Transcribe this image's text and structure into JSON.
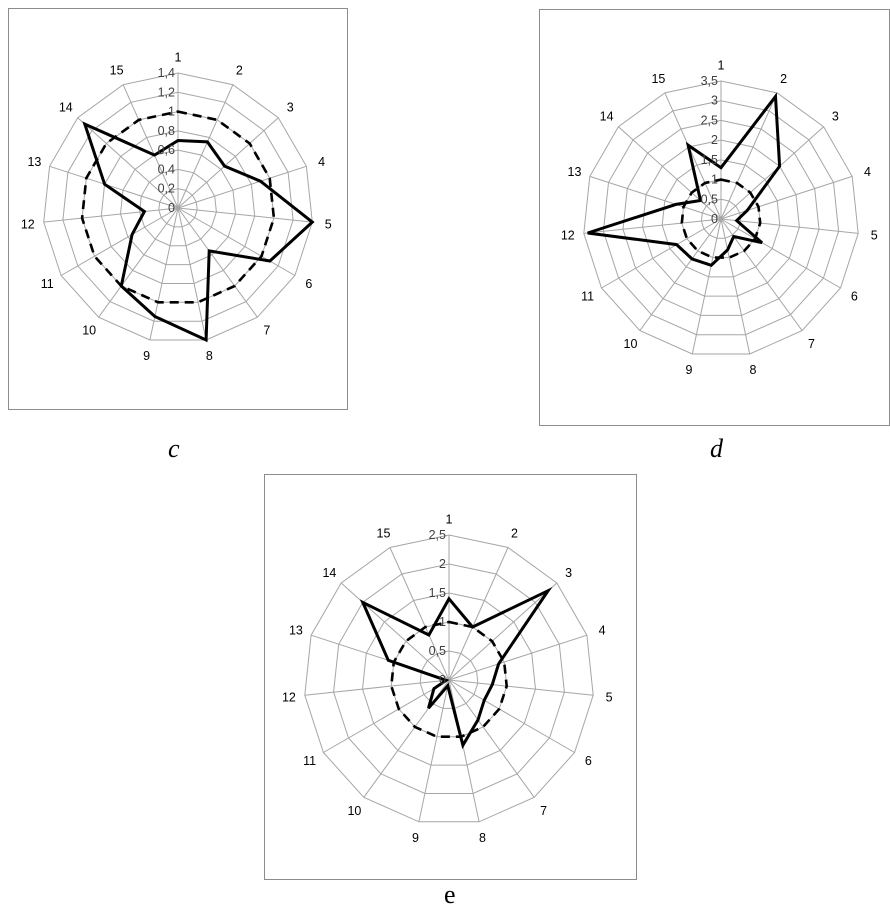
{
  "chart_data": [
    {
      "type": "radar",
      "panel_label": "c",
      "categories": [
        "1",
        "2",
        "3",
        "4",
        "5",
        "6",
        "7",
        "8",
        "9",
        "10",
        "11",
        "12",
        "13",
        "14",
        "15"
      ],
      "radial_ticks": [
        "0",
        "0,2",
        "0,4",
        "0,6",
        "0,8",
        "1",
        "1,2",
        "1,4"
      ],
      "radial_max": 1.4,
      "series": [
        {
          "style": "solid",
          "values": [
            0.7,
            0.75,
            0.65,
            0.9,
            1.4,
            1.1,
            0.55,
            1.4,
            1.15,
            1.0,
            0.55,
            0.35,
            0.8,
            1.3,
            0.6
          ]
        },
        {
          "style": "dashed",
          "values": [
            1,
            1,
            1,
            1,
            1,
            1,
            1,
            1,
            1,
            1,
            1,
            1,
            1,
            1,
            1
          ]
        }
      ]
    },
    {
      "type": "radar",
      "panel_label": "d",
      "categories": [
        "1",
        "2",
        "3",
        "4",
        "5",
        "6",
        "7",
        "8",
        "9",
        "10",
        "11",
        "12",
        "13",
        "14",
        "15"
      ],
      "radial_ticks": [
        "0",
        "0,5",
        "1",
        "1,5",
        "2",
        "2,5",
        "3",
        "3,5"
      ],
      "radial_max": 3.5,
      "series": [
        {
          "style": "solid",
          "values": [
            1.3,
            3.4,
            2.0,
            0.7,
            0.4,
            1.2,
            0.55,
            0.8,
            1.2,
            1.25,
            1.3,
            3.4,
            1.2,
            0.7,
            2.05
          ]
        },
        {
          "style": "dashed",
          "values": [
            1,
            1,
            1,
            1,
            1,
            1,
            1,
            1,
            1,
            1,
            1,
            1,
            1,
            1,
            1
          ]
        }
      ]
    },
    {
      "type": "radar",
      "panel_label": "e",
      "categories": [
        "1",
        "2",
        "3",
        "4",
        "5",
        "6",
        "7",
        "8",
        "9",
        "10",
        "11",
        "12",
        "13",
        "14",
        "15"
      ],
      "radial_ticks": [
        "0",
        "0,5",
        "1",
        "1,5",
        "2",
        "2,5"
      ],
      "radial_max": 2.5,
      "series": [
        {
          "style": "solid",
          "values": [
            1.4,
            1.0,
            2.3,
            0.9,
            0.75,
            0.7,
            0.85,
            1.15,
            0.1,
            0.6,
            0.3,
            0.05,
            1.1,
            2.0,
            0.85
          ]
        },
        {
          "style": "dashed",
          "values": [
            1,
            1,
            1,
            1,
            1,
            1,
            1,
            1,
            1,
            1,
            1,
            1,
            1,
            1,
            1
          ]
        }
      ]
    }
  ]
}
